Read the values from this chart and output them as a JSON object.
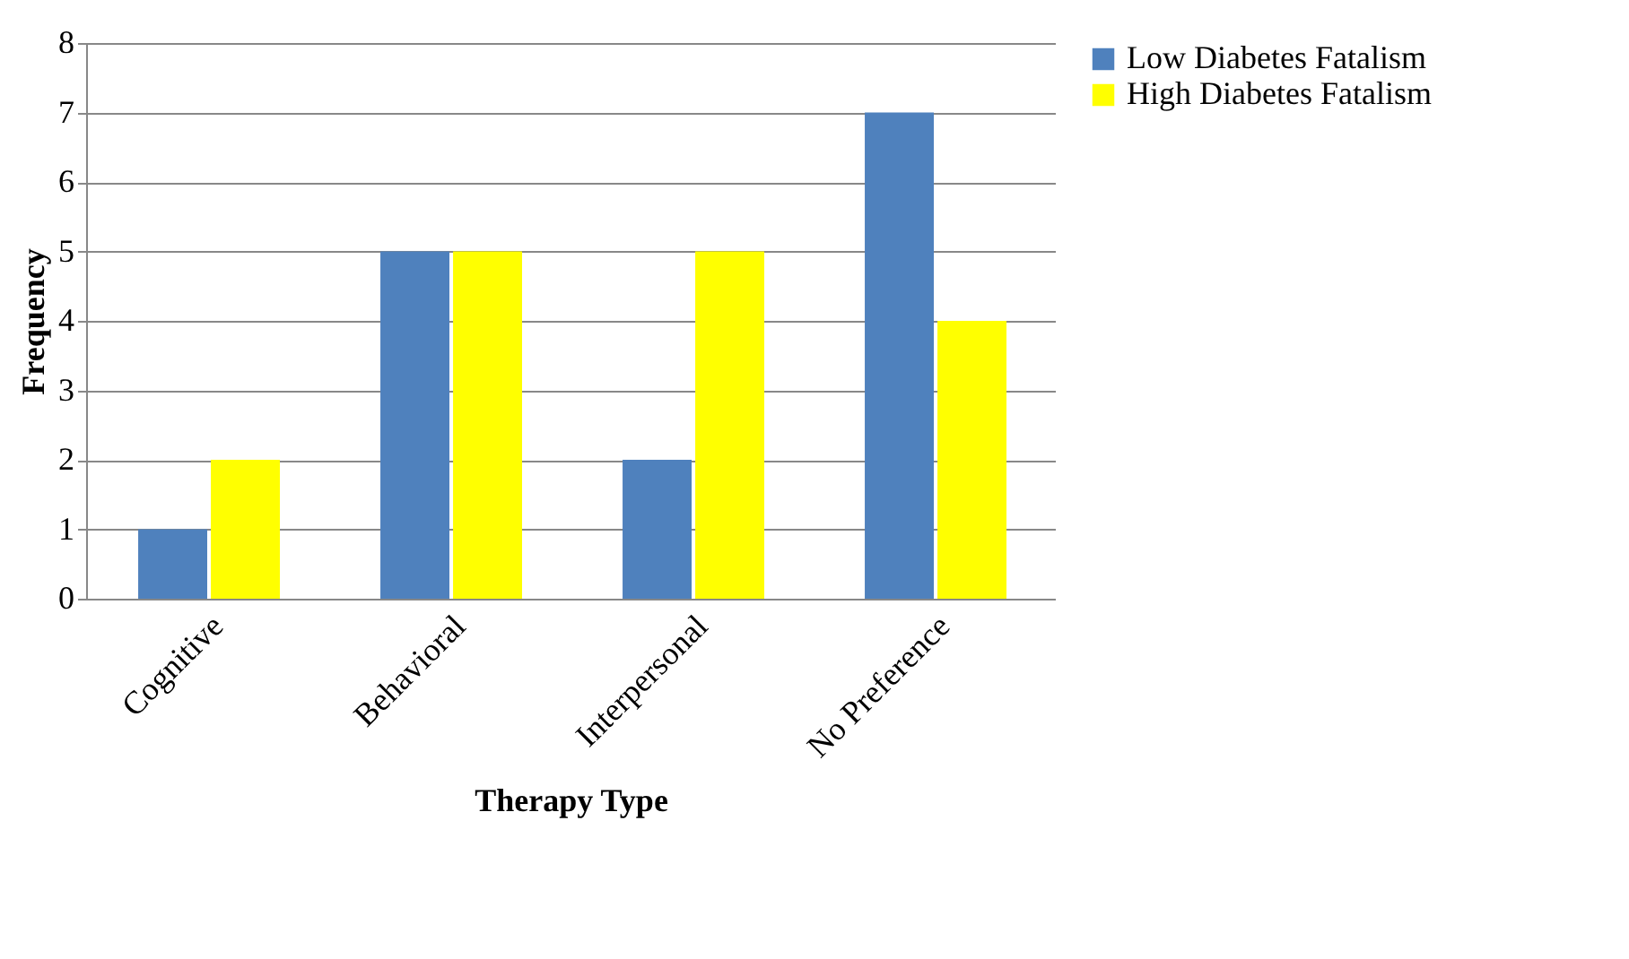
{
  "chart_data": {
    "type": "bar",
    "xlabel": "Therapy  Type",
    "ylabel": "Frequency",
    "categories": [
      "Cognitive",
      "Behavioral",
      "Interpersonal",
      "No Preference"
    ],
    "series": [
      {
        "name": "Low Diabetes Fatalism",
        "color": "#4f81bd",
        "values": [
          1,
          5,
          2,
          7
        ]
      },
      {
        "name": "High Diabetes Fatalism",
        "color": "#ffff00",
        "values": [
          2,
          5,
          5,
          4
        ]
      }
    ],
    "ylim": [
      0,
      8
    ],
    "yticks": [
      0,
      1,
      2,
      3,
      4,
      5,
      6,
      7,
      8
    ],
    "grid": "y",
    "legend": "right"
  }
}
